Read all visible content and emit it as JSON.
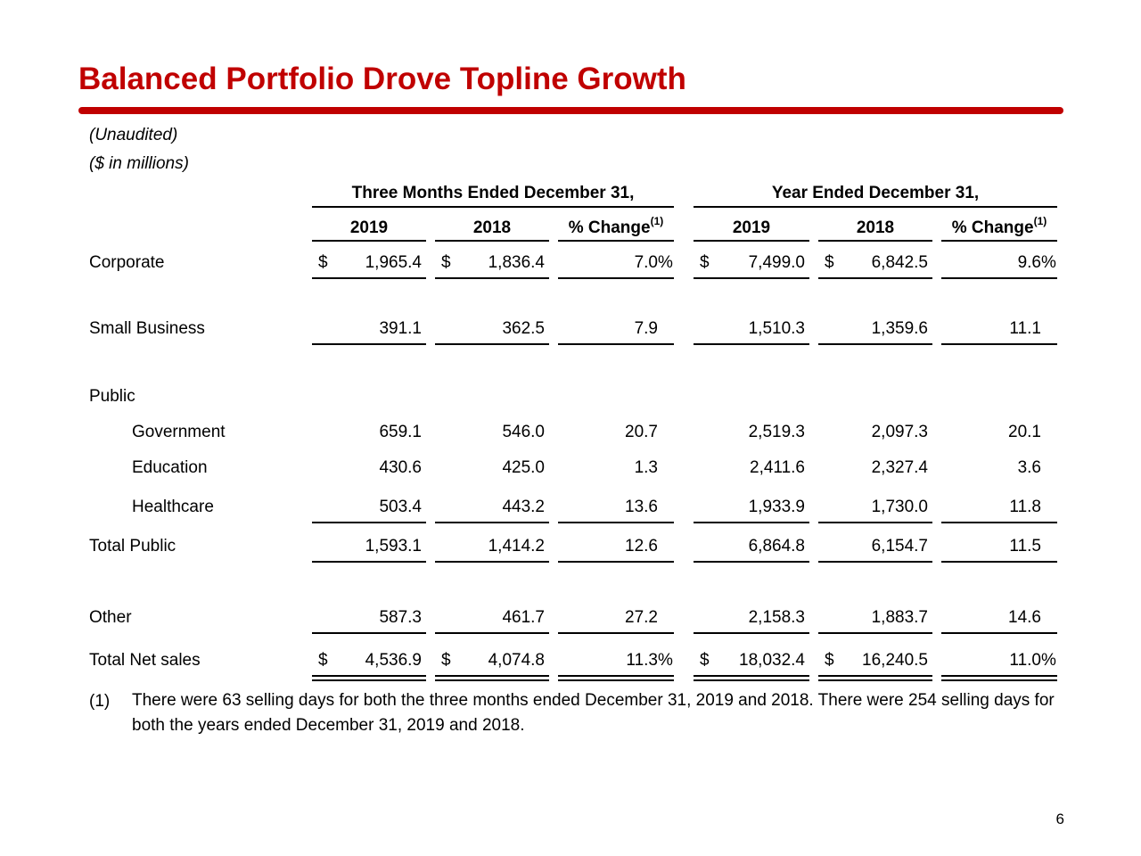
{
  "title": "Balanced Portfolio Drove Topline Growth",
  "notes": [
    "(Unaudited)",
    "($ in millions)"
  ],
  "table": {
    "group_headers": [
      "Three Months Ended December 31,",
      "Year Ended December 31,"
    ],
    "columns": [
      "2019",
      "2018",
      "% Change",
      "2019",
      "2018",
      "% Change"
    ],
    "footnote_marker": "(1)",
    "rows": [
      {
        "label": "Corporate",
        "currency": "$",
        "unit": "%",
        "cells": [
          "1,965.4",
          "1,836.4",
          "7.0",
          "7,499.0",
          "6,842.5",
          "9.6"
        ]
      },
      {
        "label": "Small Business",
        "cells": [
          "391.1",
          "362.5",
          "7.9",
          "1,510.3",
          "1,359.6",
          "11.1"
        ]
      },
      {
        "label": "Public",
        "cells": []
      },
      {
        "label": "Government",
        "cells": [
          "659.1",
          "546.0",
          "20.7",
          "2,519.3",
          "2,097.3",
          "20.1"
        ]
      },
      {
        "label": "Education",
        "cells": [
          "430.6",
          "425.0",
          "1.3",
          "2,411.6",
          "2,327.4",
          "3.6"
        ]
      },
      {
        "label": "Healthcare",
        "cells": [
          "503.4",
          "443.2",
          "13.6",
          "1,933.9",
          "1,730.0",
          "11.8"
        ]
      },
      {
        "label": "Total Public",
        "cells": [
          "1,593.1",
          "1,414.2",
          "12.6",
          "6,864.8",
          "6,154.7",
          "11.5"
        ]
      },
      {
        "label": "Other",
        "cells": [
          "587.3",
          "461.7",
          "27.2",
          "2,158.3",
          "1,883.7",
          "14.6"
        ]
      },
      {
        "label": "Total Net sales",
        "currency": "$",
        "unit": "%",
        "cells": [
          "4,536.9",
          "4,074.8",
          "11.3",
          "18,032.4",
          "16,240.5",
          "11.0"
        ]
      }
    ]
  },
  "footnote": {
    "marker": "(1)",
    "text": "There were 63 selling days for both the three months ended December 31, 2019 and 2018. There were 254 selling days for both the years ended December 31, 2019 and 2018."
  },
  "page_number": "6"
}
